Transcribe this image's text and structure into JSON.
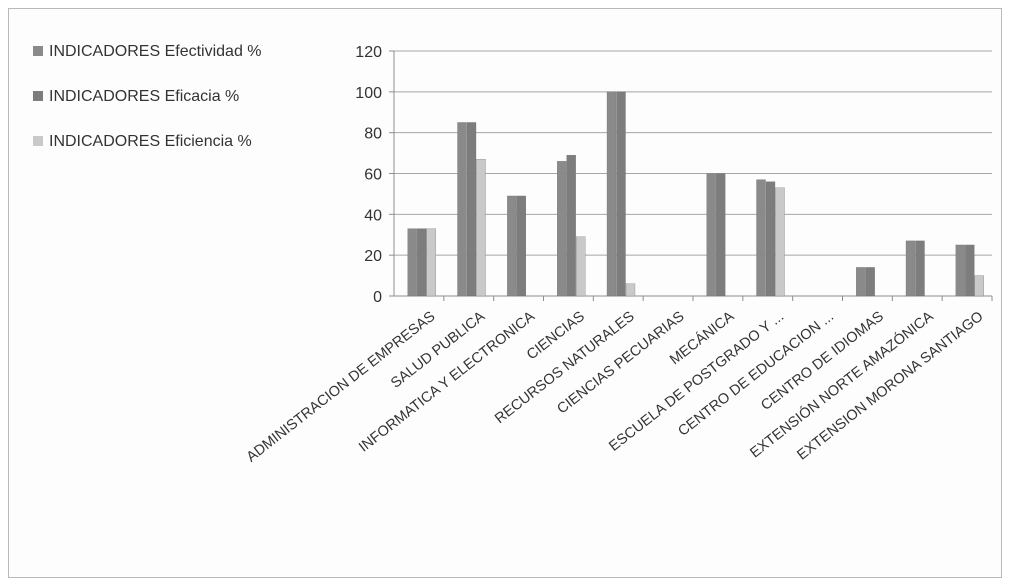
{
  "chart_data": {
    "type": "bar",
    "categories": [
      "ADMINISTRACION DE EMPRESAS",
      "SALUD PUBLICA",
      "INFORMATICA Y ELECTRONICA",
      "CIENCIAS",
      "RECURSOS NATURALES",
      "CIENCIAS PECUARIAS",
      "MECÁNICA",
      "ESCUELA DE POSTGRADO Y ...",
      "CENTRO DE EDUCACION ...",
      "CENTRO DE IDIOMAS",
      "EXTENSIÓN NORTE AMAZÓNICA",
      "EXTENSION MORONA SANTIAGO"
    ],
    "series": [
      {
        "name": "INDICADORES Efectividad %",
        "color": "#8a8a8a",
        "values": [
          33,
          85,
          49,
          66,
          100,
          0,
          60,
          57,
          0,
          14,
          27,
          25
        ]
      },
      {
        "name": "INDICADORES Eficacia %",
        "color": "#7d7d7d",
        "values": [
          33,
          85,
          49,
          69,
          100,
          0,
          60,
          56,
          0,
          14,
          27,
          25
        ]
      },
      {
        "name": "INDICADORES Eficiencia %",
        "color": "#c9c9c9",
        "values": [
          33,
          67,
          0,
          29,
          6,
          0,
          0,
          53,
          0,
          0,
          0,
          10
        ]
      }
    ],
    "yticks": [
      "0",
      "20",
      "40",
      "60",
      "80",
      "100",
      "120"
    ],
    "ylim": [
      0,
      120
    ],
    "grid": true,
    "legend_position": "left"
  }
}
